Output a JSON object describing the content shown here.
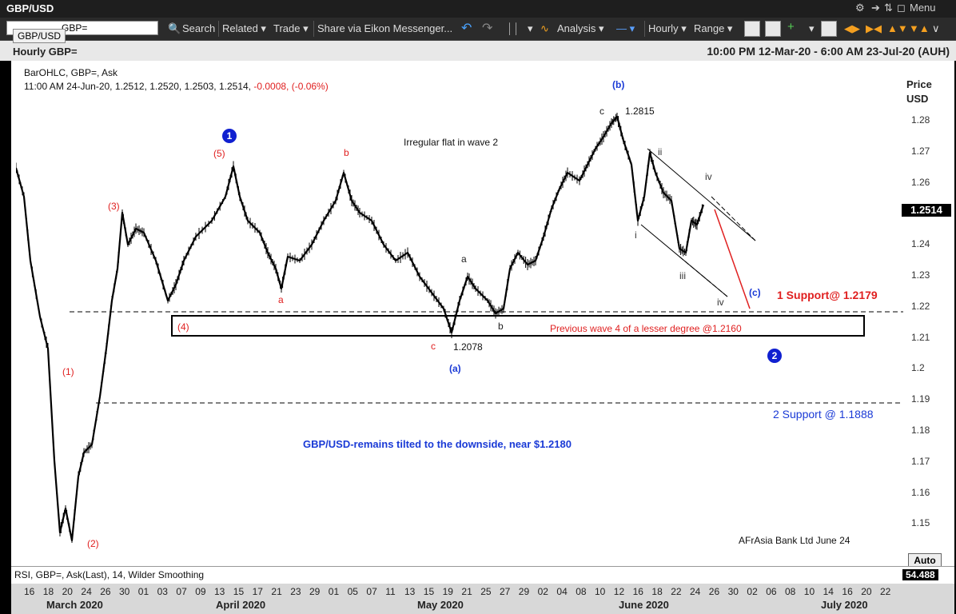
{
  "window": {
    "title": "GBP/USD",
    "menu_label": "Menu"
  },
  "toolbar": {
    "ric_value": "GBP=",
    "ric_tooltip": "GBP/USD",
    "search_label": "Search",
    "related_label": "Related",
    "trade_label": "Trade",
    "share_label": "Share via Eikon Messenger...",
    "analysis_label": "Analysis",
    "interval_label": "Hourly",
    "range_label": "Range"
  },
  "header": {
    "chart_title": "Hourly GBP=",
    "date_range": "10:00 PM 12-Mar-20 - 6:00 AM 23-Jul-20 (AUH)"
  },
  "legend": {
    "line1": "BarOHLC, GBP=, Ask",
    "line2_values": "11:00 AM 24-Jun-20, 1.2512, 1.2520, 1.2503, 1.2514,",
    "line2_change": "-0.0008, (-0.06%)"
  },
  "price_axis": {
    "title_line1": "Price",
    "title_line2": "USD",
    "ticks": [
      "1.28",
      "1.27",
      "1.26",
      "1.25",
      "1.24",
      "1.23",
      "1.22",
      "1.21",
      "1.2",
      "1.19",
      "1.18",
      "1.17",
      "1.16",
      "1.15"
    ],
    "current_price": "1.2514",
    "auto_label": "Auto"
  },
  "annotations": {
    "wave_count_1": "1",
    "wave_count_2": "2",
    "w5": "(5)",
    "w3": "(3)",
    "w4": "(4)",
    "w1": "(1)",
    "w2": "(2)",
    "a_red": "a",
    "b_red": "b",
    "c_red": "c",
    "a_black": "a",
    "b_black": "b",
    "c_black": "c",
    "wave_a_blue": "(a)",
    "wave_b_blue": "(b)",
    "wave_c_blue": "(c)",
    "irregular_flat": "Irregular flat in wave 2",
    "high_label": "1.2815",
    "low_label": "1.2078",
    "roman_i": "i",
    "roman_ii": "ii",
    "roman_iii": "iii",
    "roman_iv_top": "iv",
    "roman_iv_bottom": "iv",
    "support_1": "1 Support@ 1.2179",
    "support_2": "2 Support @ 1.1888",
    "prev_wave4": "Previous wave 4 of a lesser degree @1.2160",
    "headline": "GBP/USD-remains tilted to the downside, near $1.2180",
    "credit": "AFrAsia Bank Ltd June 24"
  },
  "rsi": {
    "label": "RSI, GBP=, Ask(Last),  14, Wilder Smoothing",
    "value": "54.488"
  },
  "xaxis": {
    "days": [
      "16",
      "18",
      "20",
      "24",
      "26",
      "30",
      "01",
      "03",
      "07",
      "09",
      "13",
      "15",
      "17",
      "21",
      "23",
      "29",
      "01",
      "05",
      "07",
      "11",
      "13",
      "15",
      "19",
      "21",
      "25",
      "27",
      "29",
      "02",
      "04",
      "08",
      "10",
      "12",
      "16",
      "18",
      "22",
      "24",
      "26",
      "30",
      "02",
      "06",
      "08",
      "10",
      "14",
      "16",
      "20",
      "22"
    ],
    "months": [
      "March 2020",
      "April 2020",
      "May 2020",
      "June 2020",
      "July 2020"
    ]
  },
  "colors": {
    "wave_red": "#e02020",
    "wave_blue": "#1a3ad6",
    "price_bg": "#000000"
  }
}
